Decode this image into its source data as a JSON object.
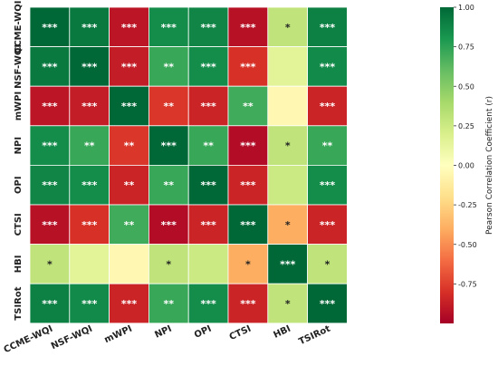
{
  "chart_data": {
    "type": "heatmap",
    "variables": [
      "CCME-WQI",
      "NSF-WQI",
      "mWPI",
      "NPI",
      "OPI",
      "CTSI",
      "HBI",
      "TSIRot"
    ],
    "values": [
      [
        1.0,
        0.93,
        -0.91,
        0.85,
        0.88,
        -0.93,
        0.3,
        0.9
      ],
      [
        0.93,
        1.0,
        -0.88,
        0.72,
        0.85,
        -0.8,
        0.15,
        0.86
      ],
      [
        -0.91,
        -0.88,
        1.0,
        -0.78,
        -0.85,
        0.7,
        -0.05,
        -0.85
      ],
      [
        0.85,
        0.72,
        -0.78,
        1.0,
        0.72,
        -0.95,
        0.3,
        0.72
      ],
      [
        0.88,
        0.85,
        -0.85,
        0.72,
        1.0,
        -0.85,
        0.25,
        0.85
      ],
      [
        -0.93,
        -0.8,
        0.7,
        -0.95,
        -0.85,
        1.0,
        -0.4,
        -0.85
      ],
      [
        0.3,
        0.15,
        -0.05,
        0.3,
        0.25,
        -0.4,
        1.0,
        0.3
      ],
      [
        0.9,
        0.86,
        -0.85,
        0.72,
        0.85,
        -0.85,
        0.3,
        1.0
      ]
    ],
    "significance": [
      [
        "***",
        "***",
        "***",
        "***",
        "***",
        "***",
        "*",
        "***"
      ],
      [
        "***",
        "***",
        "***",
        "**",
        "***",
        "***",
        "",
        "***"
      ],
      [
        "***",
        "***",
        "***",
        "**",
        "***",
        "**",
        "",
        "***"
      ],
      [
        "***",
        "**",
        "**",
        "***",
        "**",
        "***",
        "*",
        "**"
      ],
      [
        "***",
        "***",
        "**",
        "**",
        "***",
        "***",
        "",
        "***"
      ],
      [
        "***",
        "***",
        "**",
        "***",
        "***",
        "***",
        "*",
        "***"
      ],
      [
        "*",
        "",
        "",
        "*",
        "",
        "*",
        "***",
        "*"
      ],
      [
        "***",
        "***",
        "***",
        "**",
        "***",
        "***",
        "*",
        "***"
      ]
    ],
    "colorbar": {
      "label": "Pearson Correlation Coefficient (r)",
      "min": -1.0,
      "max": 1.0,
      "ticks": [
        "1.00",
        "0.75",
        "0.50",
        "0.25",
        "0.00",
        "-0.25",
        "-0.50",
        "-0.75"
      ],
      "tick_values": [
        1.0,
        0.75,
        0.5,
        0.25,
        0.0,
        -0.25,
        -0.5,
        -0.75
      ]
    },
    "colormap": [
      "#a50026",
      "#d73027",
      "#f46d43",
      "#fdae61",
      "#fee08b",
      "#ffffbf",
      "#d9ef8b",
      "#a6d96a",
      "#66bd63",
      "#1a9850",
      "#006837"
    ]
  }
}
